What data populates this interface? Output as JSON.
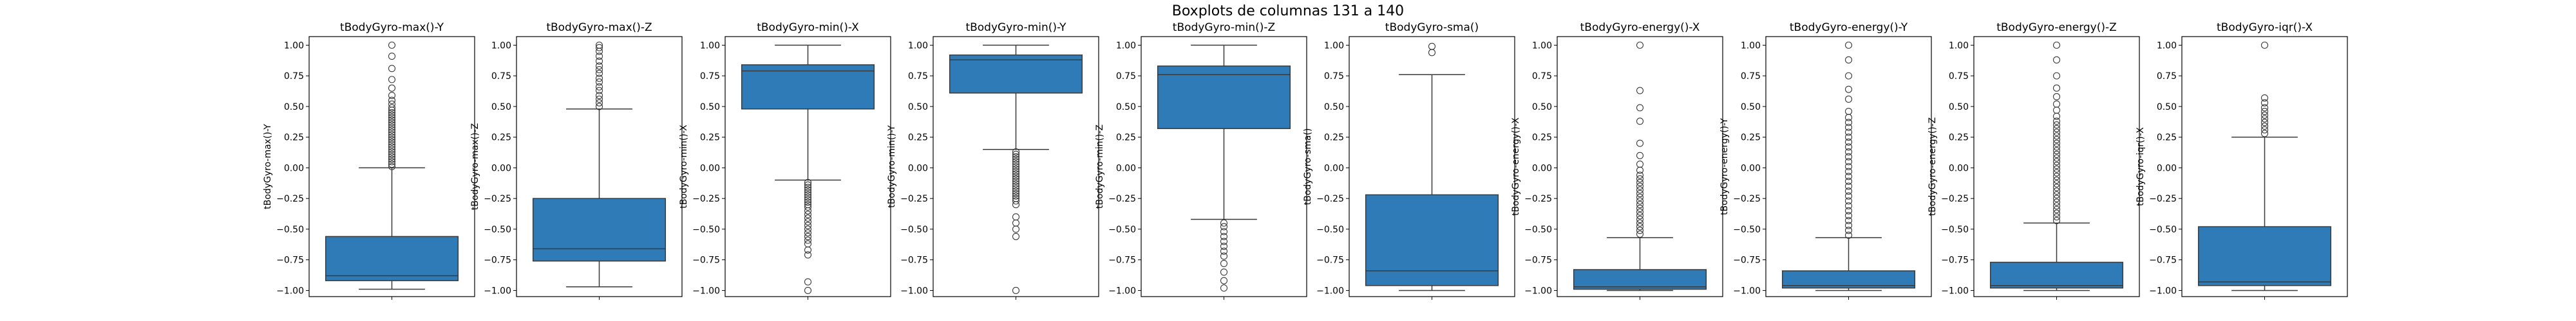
{
  "figure": {
    "suptitle": "Boxplots de columnas 131 a 140"
  },
  "colors": {
    "box_fill": "#2f7bb7",
    "line": "#3a3a3a",
    "frame": "#000000"
  },
  "chart_data": [
    {
      "type": "box",
      "title": "tBodyGyro-max()-Y",
      "ylabel": "tBodyGyro-max()-Y",
      "ylim": [
        -1.05,
        1.07
      ],
      "yticks": [
        "1.00",
        "0.75",
        "0.50",
        "0.25",
        "0.00",
        "-0.25",
        "-0.50",
        "-0.75",
        "-1.00"
      ],
      "stats": {
        "whisker_low": -0.99,
        "q1": -0.92,
        "median": -0.88,
        "q3": -0.56,
        "whisker_high": 0.0
      },
      "outliers": [
        0.01,
        0.03,
        0.05,
        0.07,
        0.09,
        0.11,
        0.13,
        0.15,
        0.17,
        0.19,
        0.21,
        0.23,
        0.25,
        0.27,
        0.29,
        0.31,
        0.33,
        0.35,
        0.37,
        0.39,
        0.41,
        0.43,
        0.45,
        0.47,
        0.49,
        0.52,
        0.55,
        0.59,
        0.65,
        0.72,
        0.81,
        0.91,
        1.0
      ]
    },
    {
      "type": "box",
      "title": "tBodyGyro-max()-Z",
      "ylabel": "tBodyGyro-max()-Z",
      "ylim": [
        -1.05,
        1.07
      ],
      "yticks": [
        "1.00",
        "0.75",
        "0.50",
        "0.25",
        "0.00",
        "-0.25",
        "-0.50",
        "-0.75",
        "-1.00"
      ],
      "stats": {
        "whisker_low": -0.97,
        "q1": -0.76,
        "median": -0.66,
        "q3": -0.25,
        "whisker_high": 0.48
      },
      "outliers": [
        0.5,
        0.53,
        0.56,
        0.59,
        0.63,
        0.66,
        0.7,
        0.73,
        0.77,
        0.8,
        0.83,
        0.87,
        0.91,
        0.95,
        0.98,
        1.0
      ]
    },
    {
      "type": "box",
      "title": "tBodyGyro-min()-X",
      "ylabel": "tBodyGyro-min()-X",
      "ylim": [
        -1.05,
        1.07
      ],
      "yticks": [
        "1.00",
        "0.75",
        "0.50",
        "0.25",
        "0.00",
        "-0.25",
        "-0.50",
        "-0.75",
        "-1.00"
      ],
      "stats": {
        "whisker_low": -0.1,
        "q1": 0.48,
        "median": 0.79,
        "q3": 0.84,
        "whisker_high": 1.0
      },
      "outliers": [
        -0.12,
        -0.14,
        -0.16,
        -0.18,
        -0.2,
        -0.22,
        -0.24,
        -0.26,
        -0.28,
        -0.3,
        -0.32,
        -0.35,
        -0.38,
        -0.41,
        -0.44,
        -0.47,
        -0.5,
        -0.53,
        -0.56,
        -0.59,
        -0.62,
        -0.67,
        -0.71,
        -0.93,
        -1.0
      ]
    },
    {
      "type": "box",
      "title": "tBodyGyro-min()-Y",
      "ylabel": "tBodyGyro-min()-Y",
      "ylim": [
        -1.05,
        1.07
      ],
      "yticks": [
        "1.00",
        "0.75",
        "0.50",
        "0.25",
        "0.00",
        "-0.25",
        "-0.50",
        "-0.75",
        "-1.00"
      ],
      "stats": {
        "whisker_low": 0.15,
        "q1": 0.61,
        "median": 0.88,
        "q3": 0.92,
        "whisker_high": 1.0
      },
      "outliers": [
        0.13,
        0.11,
        0.09,
        0.07,
        0.05,
        0.03,
        0.01,
        -0.01,
        -0.03,
        -0.05,
        -0.07,
        -0.09,
        -0.11,
        -0.13,
        -0.15,
        -0.17,
        -0.19,
        -0.21,
        -0.23,
        -0.25,
        -0.27,
        -0.3,
        -0.4,
        -0.45,
        -0.5,
        -0.56,
        -1.0
      ]
    },
    {
      "type": "box",
      "title": "tBodyGyro-min()-Z",
      "ylabel": "tBodyGyro-min()-Z",
      "ylim": [
        -1.05,
        1.07
      ],
      "yticks": [
        "1.00",
        "0.75",
        "0.50",
        "0.25",
        "0.00",
        "-0.25",
        "-0.50",
        "-0.75",
        "-1.00"
      ],
      "stats": {
        "whisker_low": -0.42,
        "q1": 0.32,
        "median": 0.76,
        "q3": 0.83,
        "whisker_high": 1.0
      },
      "outliers": [
        -0.45,
        -0.48,
        -0.52,
        -0.56,
        -0.6,
        -0.64,
        -0.68,
        -0.72,
        -0.78,
        -0.85,
        -0.92,
        -0.98
      ]
    },
    {
      "type": "box",
      "title": "tBodyGyro-sma()",
      "ylabel": "tBodyGyro-sma()",
      "ylim": [
        -1.05,
        1.07
      ],
      "yticks": [
        "1.00",
        "0.75",
        "0.50",
        "0.25",
        "0.00",
        "-0.25",
        "-0.50",
        "-0.75",
        "-1.00"
      ],
      "stats": {
        "whisker_low": -1.0,
        "q1": -0.96,
        "median": -0.84,
        "q3": -0.22,
        "whisker_high": 0.76
      },
      "outliers": [
        0.94,
        0.99
      ]
    },
    {
      "type": "box",
      "title": "tBodyGyro-energy()-X",
      "ylabel": "tBodyGyro-energy()-X",
      "ylim": [
        -1.05,
        1.07
      ],
      "yticks": [
        "1.00",
        "0.75",
        "0.50",
        "0.25",
        "0.00",
        "-0.25",
        "-0.50",
        "-0.75",
        "-1.00"
      ],
      "stats": {
        "whisker_low": -1.0,
        "q1": -0.99,
        "median": -0.97,
        "q3": -0.83,
        "whisker_high": -0.57
      },
      "outliers": [
        -0.54,
        -0.51,
        -0.48,
        -0.45,
        -0.42,
        -0.39,
        -0.36,
        -0.33,
        -0.3,
        -0.27,
        -0.24,
        -0.21,
        -0.18,
        -0.15,
        -0.12,
        -0.09,
        -0.06,
        -0.02,
        0.03,
        0.1,
        0.2,
        0.38,
        0.49,
        0.63,
        1.0
      ]
    },
    {
      "type": "box",
      "title": "tBodyGyro-energy()-Y",
      "ylabel": "tBodyGyro-energy()-Y",
      "ylim": [
        -1.05,
        1.07
      ],
      "yticks": [
        "1.00",
        "0.75",
        "0.50",
        "0.25",
        "0.00",
        "-0.25",
        "-0.50",
        "-0.75",
        "-1.00"
      ],
      "stats": {
        "whisker_low": -1.0,
        "q1": -0.98,
        "median": -0.96,
        "q3": -0.84,
        "whisker_high": -0.57
      },
      "outliers": [
        -0.55,
        -0.51,
        -0.47,
        -0.43,
        -0.39,
        -0.35,
        -0.31,
        -0.27,
        -0.23,
        -0.19,
        -0.15,
        -0.11,
        -0.07,
        -0.03,
        0.01,
        0.05,
        0.09,
        0.13,
        0.17,
        0.21,
        0.25,
        0.29,
        0.33,
        0.37,
        0.41,
        0.46,
        0.56,
        0.64,
        0.75,
        0.88,
        1.0
      ]
    },
    {
      "type": "box",
      "title": "tBodyGyro-energy()-Z",
      "ylabel": "tBodyGyro-energy()-Z",
      "ylim": [
        -1.05,
        1.07
      ],
      "yticks": [
        "1.00",
        "0.75",
        "0.50",
        "0.25",
        "0.00",
        "-0.25",
        "-0.50",
        "-0.75",
        "-1.00"
      ],
      "stats": {
        "whisker_low": -1.0,
        "q1": -0.98,
        "median": -0.96,
        "q3": -0.77,
        "whisker_high": -0.45
      },
      "outliers": [
        -0.43,
        -0.4,
        -0.37,
        -0.34,
        -0.31,
        -0.28,
        -0.25,
        -0.22,
        -0.19,
        -0.16,
        -0.13,
        -0.1,
        -0.07,
        -0.04,
        -0.01,
        0.02,
        0.05,
        0.08,
        0.11,
        0.14,
        0.17,
        0.2,
        0.23,
        0.26,
        0.29,
        0.32,
        0.35,
        0.38,
        0.42,
        0.47,
        0.52,
        0.58,
        0.65,
        0.75,
        0.88,
        1.0
      ]
    },
    {
      "type": "box",
      "title": "tBodyGyro-iqr()-X",
      "ylabel": "tBodyGyro-iqr()-X",
      "ylim": [
        -1.05,
        1.07
      ],
      "yticks": [
        "1.00",
        "0.75",
        "0.50",
        "0.25",
        "0.00",
        "-0.25",
        "-0.50",
        "-0.75",
        "-1.00"
      ],
      "stats": {
        "whisker_low": -1.0,
        "q1": -0.96,
        "median": -0.93,
        "q3": -0.48,
        "whisker_high": 0.25
      },
      "outliers": [
        0.28,
        0.31,
        0.34,
        0.37,
        0.4,
        0.43,
        0.46,
        0.49,
        0.53,
        0.57,
        1.0
      ]
    }
  ]
}
